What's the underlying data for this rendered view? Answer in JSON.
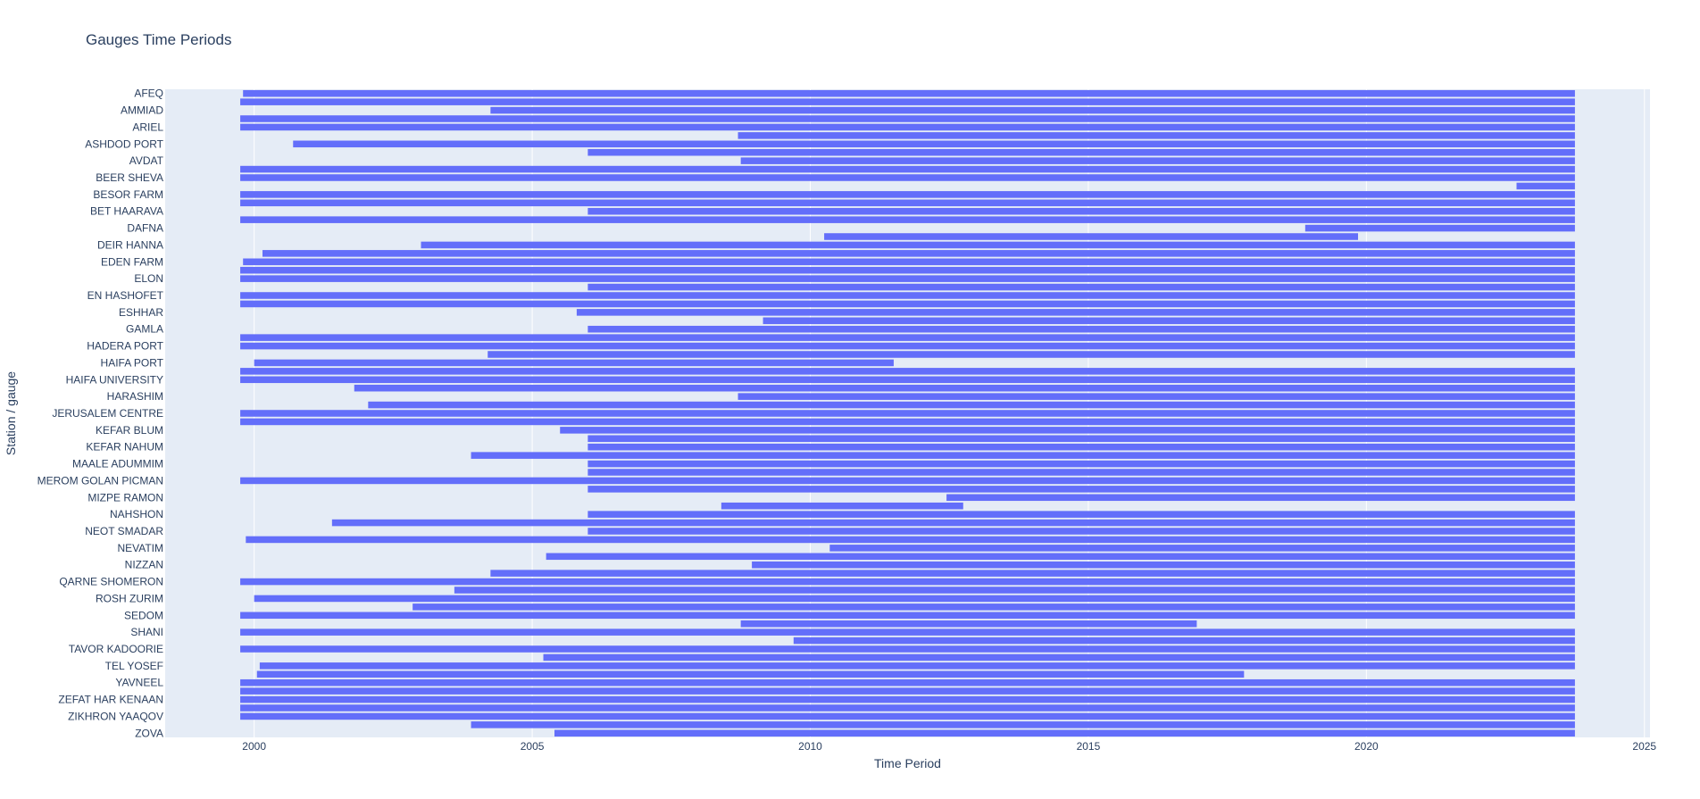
{
  "chart_data": {
    "type": "bar",
    "orientation": "horizontal-timeline",
    "title": "Gauges Time Periods",
    "xlabel": "Time Period",
    "ylabel": "Station / gauge",
    "xlim": [
      1998.4,
      2025.1
    ],
    "xticks": [
      2000,
      2005,
      2010,
      2015,
      2020,
      2025
    ],
    "grid": true,
    "bar_color": "#636efa",
    "plot_bg": "#e5ecf6",
    "rows": [
      {
        "label": "AFEQ",
        "start": 1999.8,
        "end": 2023.75
      },
      {
        "label": "",
        "start": 1999.75,
        "end": 2023.75
      },
      {
        "label": "AMMIAD",
        "start": 2004.25,
        "end": 2023.75
      },
      {
        "label": "",
        "start": 1999.75,
        "end": 2023.75
      },
      {
        "label": "ARIEL",
        "start": 1999.75,
        "end": 2023.75
      },
      {
        "label": "",
        "start": 2008.7,
        "end": 2023.75
      },
      {
        "label": "ASHDOD PORT",
        "start": 2000.7,
        "end": 2023.75
      },
      {
        "label": "",
        "start": 2006.0,
        "end": 2023.75
      },
      {
        "label": "AVDAT",
        "start": 2008.75,
        "end": 2023.75
      },
      {
        "label": "",
        "start": 1999.75,
        "end": 2023.75
      },
      {
        "label": "BEER SHEVA",
        "start": 1999.75,
        "end": 2023.75
      },
      {
        "label": "",
        "start": 2022.7,
        "end": 2023.75
      },
      {
        "label": "BESOR FARM",
        "start": 1999.75,
        "end": 2023.75
      },
      {
        "label": "",
        "start": 1999.75,
        "end": 2023.75
      },
      {
        "label": "BET HAARAVA",
        "start": 2006.0,
        "end": 2023.75
      },
      {
        "label": "",
        "start": 1999.75,
        "end": 2023.75
      },
      {
        "label": "DAFNA",
        "start": 2018.9,
        "end": 2023.75
      },
      {
        "label": "",
        "start": 2010.25,
        "end": 2019.85
      },
      {
        "label": "DEIR HANNA",
        "start": 2003.0,
        "end": 2023.75
      },
      {
        "label": "",
        "start": 2000.15,
        "end": 2023.75
      },
      {
        "label": "EDEN FARM",
        "start": 1999.8,
        "end": 2023.75
      },
      {
        "label": "",
        "start": 1999.75,
        "end": 2023.75
      },
      {
        "label": "ELON",
        "start": 1999.75,
        "end": 2023.75
      },
      {
        "label": "",
        "start": 2006.0,
        "end": 2023.75
      },
      {
        "label": "EN HASHOFET",
        "start": 1999.75,
        "end": 2023.75
      },
      {
        "label": "",
        "start": 1999.75,
        "end": 2023.75
      },
      {
        "label": "ESHHAR",
        "start": 2005.8,
        "end": 2023.75
      },
      {
        "label": "",
        "start": 2009.15,
        "end": 2023.75
      },
      {
        "label": "GAMLA",
        "start": 2006.0,
        "end": 2023.75
      },
      {
        "label": "",
        "start": 1999.75,
        "end": 2023.75
      },
      {
        "label": "HADERA PORT",
        "start": 1999.75,
        "end": 2023.75
      },
      {
        "label": "",
        "start": 2004.2,
        "end": 2023.75
      },
      {
        "label": "HAIFA PORT",
        "start": 2000.0,
        "end": 2011.5
      },
      {
        "label": "",
        "start": 1999.75,
        "end": 2023.75
      },
      {
        "label": "HAIFA UNIVERSITY",
        "start": 1999.75,
        "end": 2023.75
      },
      {
        "label": "",
        "start": 2001.8,
        "end": 2023.75
      },
      {
        "label": "HARASHIM",
        "start": 2008.7,
        "end": 2023.75
      },
      {
        "label": "",
        "start": 2002.05,
        "end": 2023.75
      },
      {
        "label": "JERUSALEM CENTRE",
        "start": 1999.75,
        "end": 2023.75
      },
      {
        "label": "",
        "start": 1999.75,
        "end": 2023.75
      },
      {
        "label": "KEFAR BLUM",
        "start": 2005.5,
        "end": 2023.75
      },
      {
        "label": "",
        "start": 2006.0,
        "end": 2023.75
      },
      {
        "label": "KEFAR NAHUM",
        "start": 2006.0,
        "end": 2023.75
      },
      {
        "label": "",
        "start": 2003.9,
        "end": 2023.75
      },
      {
        "label": "MAALE ADUMMIM",
        "start": 2006.0,
        "end": 2023.75
      },
      {
        "label": "",
        "start": 2006.0,
        "end": 2023.75
      },
      {
        "label": "MEROM GOLAN PICMAN",
        "start": 1999.75,
        "end": 2023.75
      },
      {
        "label": "",
        "start": 2006.0,
        "end": 2023.75
      },
      {
        "label": "MIZPE RAMON",
        "start": 2012.45,
        "end": 2023.75
      },
      {
        "label": "",
        "start": 2008.4,
        "end": 2012.75
      },
      {
        "label": "NAHSHON",
        "start": 2006.0,
        "end": 2023.75
      },
      {
        "label": "",
        "start": 2001.4,
        "end": 2023.75
      },
      {
        "label": "NEOT SMADAR",
        "start": 2006.0,
        "end": 2023.75
      },
      {
        "label": "",
        "start": 1999.85,
        "end": 2023.75
      },
      {
        "label": "NEVATIM",
        "start": 2010.35,
        "end": 2023.75
      },
      {
        "label": "",
        "start": 2005.25,
        "end": 2023.75
      },
      {
        "label": "NIZZAN",
        "start": 2008.95,
        "end": 2023.75
      },
      {
        "label": "",
        "start": 2004.25,
        "end": 2023.75
      },
      {
        "label": "QARNE SHOMERON",
        "start": 1999.75,
        "end": 2023.75
      },
      {
        "label": "",
        "start": 2003.6,
        "end": 2023.75
      },
      {
        "label": "ROSH ZURIM",
        "start": 2000.0,
        "end": 2023.75
      },
      {
        "label": "",
        "start": 2002.85,
        "end": 2023.75
      },
      {
        "label": "SEDOM",
        "start": 1999.75,
        "end": 2023.75
      },
      {
        "label": "",
        "start": 2008.75,
        "end": 2016.95
      },
      {
        "label": "SHANI",
        "start": 1999.75,
        "end": 2023.75
      },
      {
        "label": "",
        "start": 2009.7,
        "end": 2023.75
      },
      {
        "label": "TAVOR KADOORIE",
        "start": 1999.75,
        "end": 2023.75
      },
      {
        "label": "",
        "start": 2005.2,
        "end": 2023.75
      },
      {
        "label": "TEL YOSEF",
        "start": 2000.1,
        "end": 2023.75
      },
      {
        "label": "",
        "start": 2000.05,
        "end": 2017.8
      },
      {
        "label": "YAVNEEL",
        "start": 1999.75,
        "end": 2023.75
      },
      {
        "label": "",
        "start": 1999.75,
        "end": 2023.75
      },
      {
        "label": "ZEFAT HAR KENAAN",
        "start": 1999.75,
        "end": 2023.75
      },
      {
        "label": "",
        "start": 1999.75,
        "end": 2023.75
      },
      {
        "label": "ZIKHRON YAAQOV",
        "start": 1999.75,
        "end": 2023.75
      },
      {
        "label": "",
        "start": 2003.9,
        "end": 2023.75
      },
      {
        "label": "ZOVA",
        "start": 2005.4,
        "end": 2023.75
      }
    ]
  }
}
